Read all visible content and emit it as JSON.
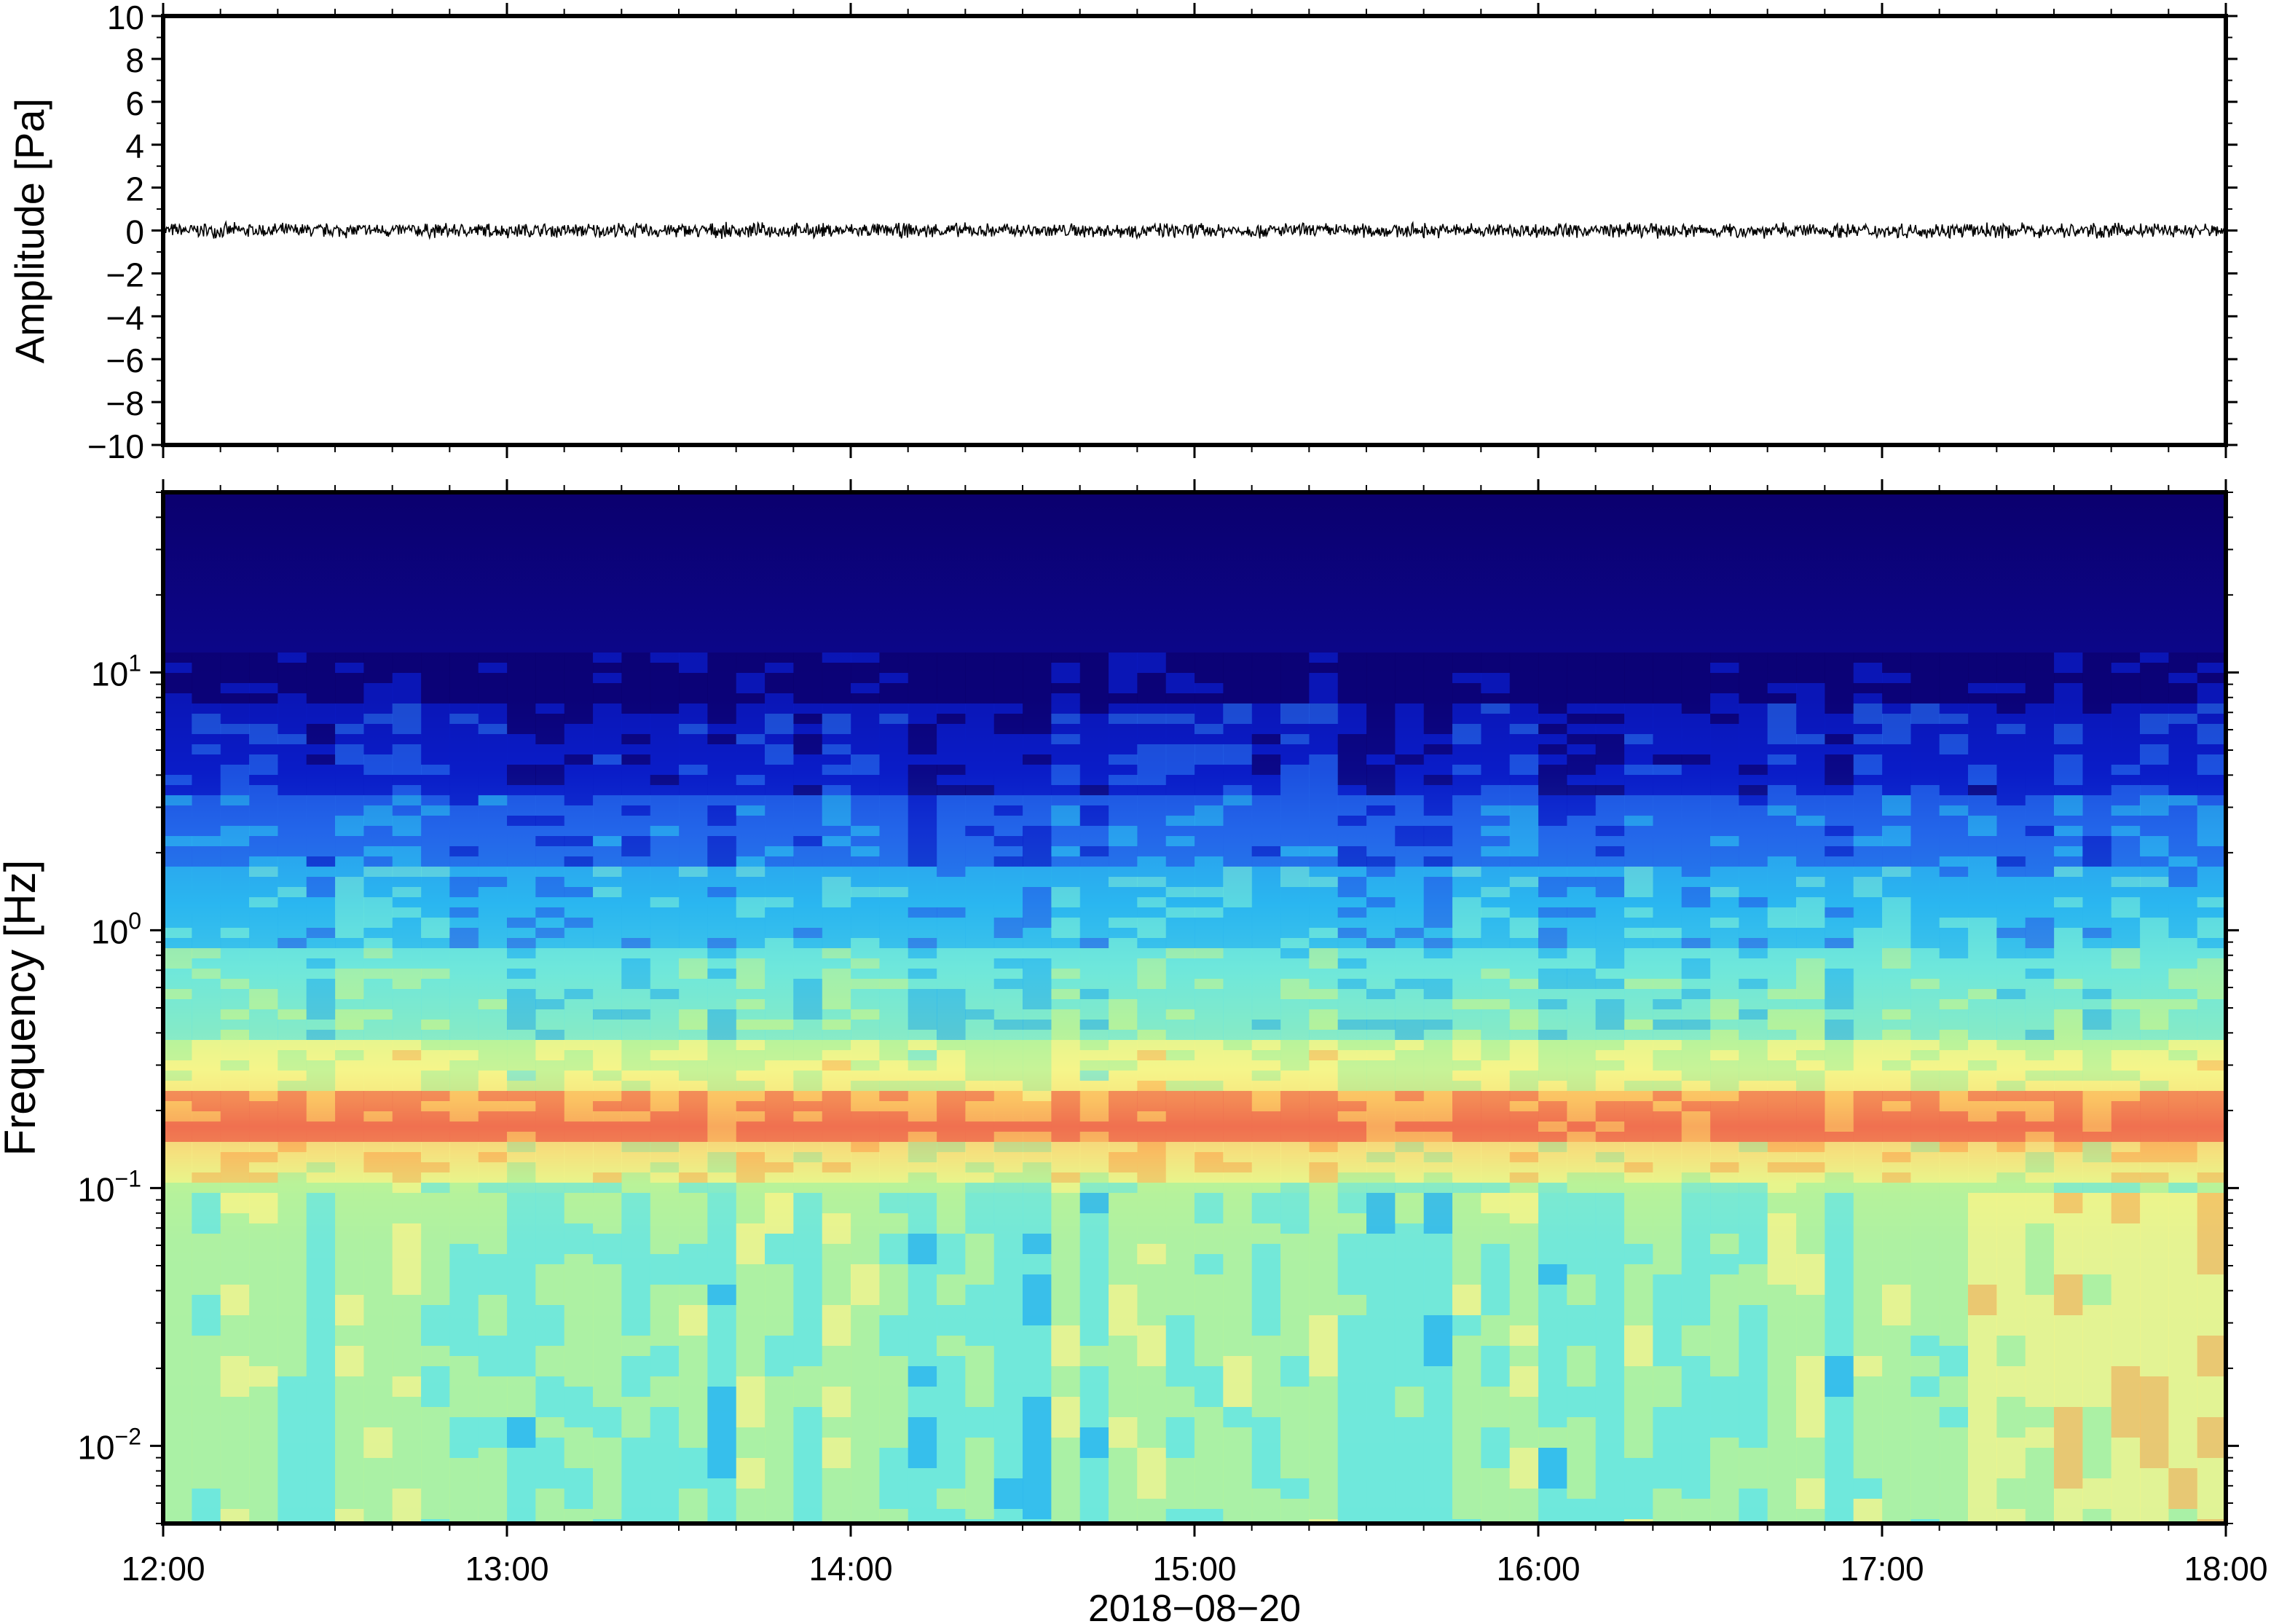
{
  "chart_data": [
    {
      "type": "line",
      "title": "",
      "xlabel": "",
      "ylabel": "Amplitude [Pa]",
      "ylim": [
        -10,
        10
      ],
      "yticks": [
        10,
        8,
        6,
        4,
        2,
        0,
        -2,
        -4,
        -6,
        -8,
        -10
      ],
      "ytick_labels": [
        "10",
        "8",
        "6",
        "4",
        "2",
        "0",
        "−2",
        "−4",
        "−6",
        "−8",
        "−10"
      ],
      "xlim": [
        "12:00",
        "18:00"
      ],
      "series": [
        {
          "color": "#000000",
          "mean": 0.0,
          "approx_peak_amplitude": 0.4
        }
      ]
    },
    {
      "type": "heatmap",
      "title": "",
      "xlabel": "2018−08−20",
      "ylabel": "Frequency [Hz]",
      "yscale": "log",
      "ylim": [
        0.005,
        50
      ],
      "ytick_labels": [
        {
          "value": 10,
          "base": "10",
          "exp": "1"
        },
        {
          "value": 1,
          "base": "10",
          "exp": "0"
        },
        {
          "value": 0.1,
          "base": "10",
          "exp": "−1"
        },
        {
          "value": 0.01,
          "base": "10",
          "exp": "−2"
        }
      ],
      "xlim": [
        "12:00",
        "18:00"
      ],
      "xtick_labels": [
        "12:00",
        "13:00",
        "14:00",
        "15:00",
        "16:00",
        "17:00",
        "18:00"
      ],
      "colormap": [
        "#0b006e",
        "#0a1dc8",
        "#2466ea",
        "#2bb7f0",
        "#6ee7dc",
        "#b4f29c",
        "#f5f58a",
        "#fbc262",
        "#f07050"
      ],
      "notable_features": [
        {
          "description": "microseism peak",
          "frequency_hz": 0.17,
          "color": "#f07050"
        },
        {
          "description": "high-frequency noise floor above",
          "frequency_hz": 5,
          "color": "#0b006e"
        }
      ]
    }
  ]
}
